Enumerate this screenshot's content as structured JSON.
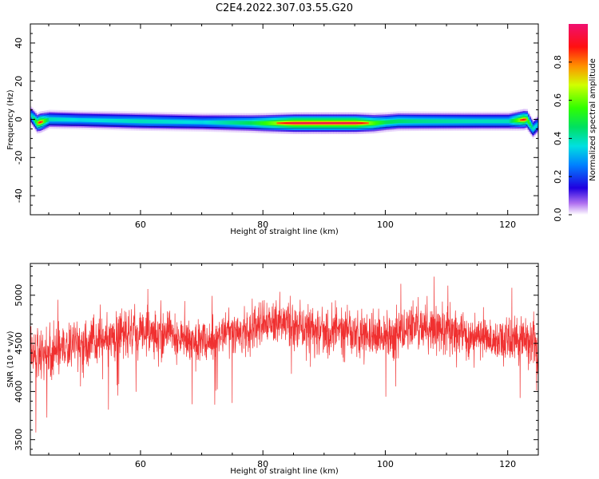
{
  "title": "C2E4.2022.307.03.55.G20",
  "chart_data": [
    {
      "type": "heatmap",
      "xlabel": "Height of straight line (km)",
      "ylabel": "Frequency (Hz)",
      "xlim": [
        42,
        125
      ],
      "ylim": [
        -50,
        50
      ],
      "xticks": [
        60,
        80,
        100,
        120
      ],
      "yticks": [
        40,
        20,
        0,
        -20,
        -40
      ],
      "colorbar": {
        "label": "Normalized spectral amplitude",
        "range": [
          0.0,
          1.0
        ],
        "ticks": [
          0.0,
          0.2,
          0.4,
          0.6,
          0.8
        ],
        "colormap": "rainbow (violet to red to pink)"
      },
      "ridge": {
        "description": "narrow band near 0 Hz across all heights",
        "center_hz": [
          [
            42,
            2
          ],
          [
            43,
            -2
          ],
          [
            45,
            0
          ],
          [
            60,
            -1
          ],
          [
            80,
            -2
          ],
          [
            90,
            -2
          ],
          [
            98,
            -2
          ],
          [
            102,
            -1
          ],
          [
            120,
            -1
          ],
          [
            123,
            0
          ],
          [
            124,
            -5
          ],
          [
            125,
            -2
          ]
        ],
        "peak_amplitude": [
          [
            42,
            0.45
          ],
          [
            43.5,
            0.9
          ],
          [
            45,
            0.5
          ],
          [
            50,
            0.45
          ],
          [
            60,
            0.5
          ],
          [
            70,
            0.45
          ],
          [
            78,
            0.6
          ],
          [
            85,
            0.95
          ],
          [
            95,
            0.95
          ],
          [
            100,
            0.6
          ],
          [
            105,
            0.55
          ],
          [
            115,
            0.5
          ],
          [
            120,
            0.5
          ],
          [
            122.5,
            0.9
          ],
          [
            124,
            0.5
          ],
          [
            125,
            0.4
          ]
        ]
      }
    },
    {
      "type": "line",
      "xlabel": "Height of straight line (km)",
      "ylabel": "SNR (10 * v/v)",
      "xlim": [
        42,
        125
      ],
      "ylim": [
        3340,
        5330
      ],
      "xticks": [
        60,
        80,
        100,
        120
      ],
      "yticks": [
        3500,
        4000,
        4500,
        5000
      ],
      "line_color": "#f03030",
      "series": [
        {
          "x": [
            42,
            44,
            46,
            48,
            50,
            52,
            54,
            56,
            58,
            60,
            62,
            64,
            66,
            68,
            70,
            72,
            74,
            76,
            78,
            80,
            82,
            84,
            86,
            88,
            90,
            92,
            94,
            96,
            98,
            100,
            102,
            104,
            106,
            108,
            110,
            112,
            114,
            116,
            118,
            120,
            122,
            124,
            125
          ],
          "y": [
            4400,
            4350,
            4420,
            4450,
            4480,
            4500,
            4550,
            4580,
            4600,
            4620,
            4600,
            4580,
            4560,
            4540,
            4520,
            4550,
            4600,
            4620,
            4640,
            4700,
            4720,
            4700,
            4680,
            4660,
            4650,
            4640,
            4620,
            4600,
            4580,
            4560,
            4600,
            4650,
            4660,
            4640,
            4620,
            4600,
            4580,
            4560,
            4540,
            4540,
            4530,
            4520,
            4500
          ]
        }
      ]
    }
  ]
}
